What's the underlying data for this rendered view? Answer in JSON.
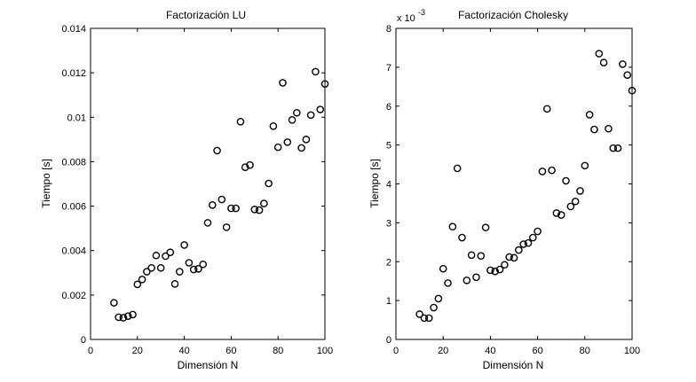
{
  "chart_data": [
    {
      "type": "scatter",
      "title": "Factorización LU",
      "xlabel": "Dimensión N",
      "ylabel": "Tiempo [s]",
      "xlim": [
        0,
        100
      ],
      "ylim": [
        0,
        0.014
      ],
      "xticks": [
        0,
        20,
        40,
        60,
        80,
        100
      ],
      "xtick_labels": [
        "0",
        "20",
        "40",
        "60",
        "80",
        "100"
      ],
      "yticks": [
        0,
        0.002,
        0.004,
        0.006,
        0.008,
        0.01,
        0.012,
        0.014
      ],
      "ytick_labels": [
        "0",
        "0.002",
        "0.004",
        "0.006",
        "0.008",
        "0.01",
        "0.012",
        "0.014"
      ],
      "exponent_label": "",
      "grid": false,
      "marker": "circle",
      "color": "#000000",
      "points": [
        [
          10,
          0.00165
        ],
        [
          12,
          0.001
        ],
        [
          14,
          0.00098
        ],
        [
          16,
          0.00105
        ],
        [
          18,
          0.00112
        ],
        [
          20,
          0.00248
        ],
        [
          22,
          0.0027
        ],
        [
          24,
          0.00305
        ],
        [
          26,
          0.00322
        ],
        [
          28,
          0.00378
        ],
        [
          30,
          0.00322
        ],
        [
          32,
          0.00375
        ],
        [
          34,
          0.00392
        ],
        [
          36,
          0.0025
        ],
        [
          38,
          0.00305
        ],
        [
          40,
          0.00425
        ],
        [
          42,
          0.00345
        ],
        [
          44,
          0.00315
        ],
        [
          46,
          0.00318
        ],
        [
          48,
          0.00338
        ],
        [
          50,
          0.00525
        ],
        [
          52,
          0.00605
        ],
        [
          54,
          0.0085
        ],
        [
          56,
          0.0063
        ],
        [
          58,
          0.00505
        ],
        [
          60,
          0.0059
        ],
        [
          62,
          0.0059
        ],
        [
          64,
          0.0098
        ],
        [
          66,
          0.00775
        ],
        [
          68,
          0.00785
        ],
        [
          70,
          0.00585
        ],
        [
          72,
          0.00582
        ],
        [
          74,
          0.00612
        ],
        [
          76,
          0.00702
        ],
        [
          78,
          0.0096
        ],
        [
          80,
          0.00865
        ],
        [
          82,
          0.01155
        ],
        [
          84,
          0.00888
        ],
        [
          86,
          0.00988
        ],
        [
          88,
          0.0102
        ],
        [
          90,
          0.00862
        ],
        [
          92,
          0.009
        ],
        [
          94,
          0.0101
        ],
        [
          96,
          0.01205
        ],
        [
          98,
          0.01035
        ],
        [
          100,
          0.0115
        ]
      ]
    },
    {
      "type": "scatter",
      "title": "Factorización Cholesky",
      "xlabel": "Dimensión N",
      "ylabel": "Tiempo [s]",
      "xlim": [
        0,
        100
      ],
      "ylim": [
        0,
        8
      ],
      "xticks": [
        0,
        20,
        40,
        60,
        80,
        100
      ],
      "xtick_labels": [
        "0",
        "20",
        "40",
        "60",
        "80",
        "100"
      ],
      "yticks": [
        0,
        1,
        2,
        3,
        4,
        5,
        6,
        7,
        8
      ],
      "ytick_labels": [
        "0",
        "1",
        "2",
        "3",
        "4",
        "5",
        "6",
        "7",
        "8"
      ],
      "exponent_label": "x 10",
      "exponent_power": "-3",
      "grid": false,
      "marker": "circle",
      "color": "#000000",
      "points": [
        [
          10,
          0.65
        ],
        [
          12,
          0.55
        ],
        [
          14,
          0.55
        ],
        [
          16,
          0.82
        ],
        [
          18,
          1.05
        ],
        [
          20,
          1.82
        ],
        [
          22,
          1.45
        ],
        [
          24,
          2.9
        ],
        [
          26,
          4.4
        ],
        [
          28,
          2.62
        ],
        [
          30,
          1.52
        ],
        [
          32,
          2.17
        ],
        [
          34,
          1.6
        ],
        [
          36,
          2.15
        ],
        [
          38,
          2.88
        ],
        [
          40,
          1.78
        ],
        [
          42,
          1.75
        ],
        [
          44,
          1.8
        ],
        [
          46,
          1.92
        ],
        [
          48,
          2.12
        ],
        [
          50,
          2.1
        ],
        [
          52,
          2.3
        ],
        [
          54,
          2.45
        ],
        [
          56,
          2.48
        ],
        [
          58,
          2.62
        ],
        [
          60,
          2.78
        ],
        [
          62,
          4.32
        ],
        [
          64,
          5.93
        ],
        [
          66,
          4.35
        ],
        [
          68,
          3.25
        ],
        [
          70,
          3.2
        ],
        [
          72,
          4.08
        ],
        [
          74,
          3.42
        ],
        [
          76,
          3.55
        ],
        [
          78,
          3.82
        ],
        [
          80,
          4.47
        ],
        [
          82,
          5.78
        ],
        [
          84,
          5.4
        ],
        [
          86,
          7.35
        ],
        [
          88,
          7.12
        ],
        [
          90,
          5.42
        ],
        [
          92,
          4.92
        ],
        [
          94,
          4.92
        ],
        [
          96,
          7.08
        ],
        [
          98,
          6.8
        ],
        [
          100,
          6.4
        ]
      ]
    }
  ]
}
